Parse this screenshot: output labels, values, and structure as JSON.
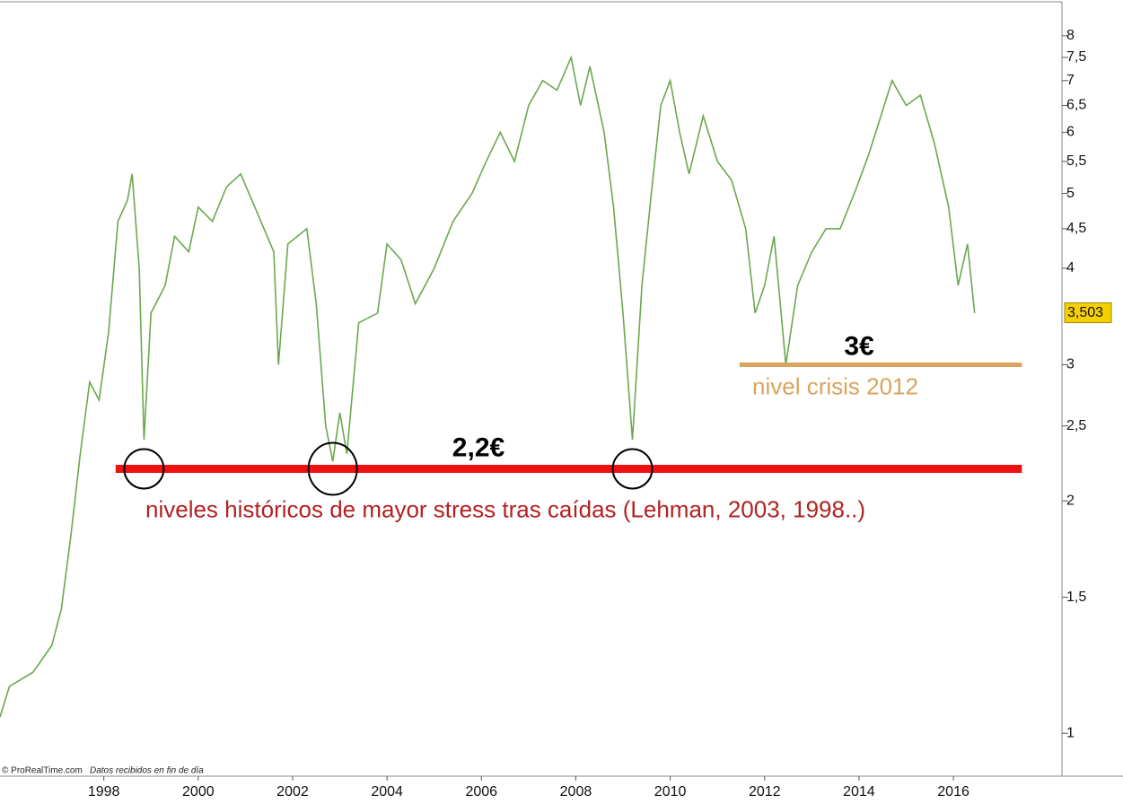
{
  "chart_data": {
    "type": "line",
    "log_scale": true,
    "color": "#6aa84f",
    "x": [
      1995.8,
      1996.0,
      1996.5,
      1996.9,
      1997.1,
      1997.3,
      1997.5,
      1997.7,
      1997.9,
      1998.1,
      1998.3,
      1998.5,
      1998.6,
      1998.75,
      1998.85,
      1999.0,
      1999.3,
      1999.5,
      1999.8,
      2000.0,
      2000.3,
      2000.6,
      2000.9,
      2001.2,
      2001.6,
      2001.7,
      2001.9,
      2002.3,
      2002.5,
      2002.7,
      2002.85,
      2003.0,
      2003.15,
      2003.4,
      2003.8,
      2004.0,
      2004.3,
      2004.6,
      2005.0,
      2005.4,
      2005.8,
      2006.1,
      2006.4,
      2006.7,
      2007.0,
      2007.3,
      2007.6,
      2007.9,
      2008.1,
      2008.3,
      2008.6,
      2008.8,
      2009.0,
      2009.2,
      2009.4,
      2009.6,
      2009.8,
      2010.0,
      2010.2,
      2010.4,
      2010.7,
      2011.0,
      2011.3,
      2011.6,
      2011.8,
      2012.0,
      2012.2,
      2012.45,
      2012.7,
      2013.0,
      2013.3,
      2013.6,
      2013.9,
      2014.2,
      2014.5,
      2014.7,
      2015.0,
      2015.3,
      2015.6,
      2015.9,
      2016.1,
      2016.3,
      2016.45
    ],
    "values": [
      1.05,
      1.15,
      1.2,
      1.3,
      1.45,
      1.8,
      2.3,
      2.85,
      2.7,
      3.3,
      4.6,
      4.9,
      5.3,
      4.0,
      2.4,
      3.5,
      3.8,
      4.4,
      4.2,
      4.8,
      4.6,
      5.1,
      5.3,
      4.8,
      4.2,
      3.0,
      4.3,
      4.5,
      3.6,
      2.5,
      2.25,
      2.6,
      2.3,
      3.4,
      3.5,
      4.3,
      4.1,
      3.6,
      4.0,
      4.6,
      5.0,
      5.5,
      6.0,
      5.5,
      6.5,
      7.0,
      6.8,
      7.5,
      6.5,
      7.3,
      6.0,
      4.8,
      3.5,
      2.4,
      3.8,
      5.0,
      6.5,
      7.0,
      6.0,
      5.3,
      6.3,
      5.5,
      5.2,
      4.5,
      3.5,
      3.8,
      4.4,
      3.0,
      3.8,
      4.2,
      4.5,
      4.5,
      5.0,
      5.6,
      6.4,
      7.0,
      6.5,
      6.7,
      5.8,
      4.8,
      3.8,
      4.3,
      3.5
    ],
    "xlim": [
      1995.8,
      2018.3
    ],
    "xticks": [
      1998,
      2000,
      2002,
      2004,
      2006,
      2008,
      2010,
      2012,
      2014,
      2016
    ],
    "ylim": [
      0.88,
      8.9
    ],
    "yticks": [
      1,
      {
        "value": 1.5,
        "label": "1,5"
      },
      2,
      {
        "value": 2.5,
        "label": "2,5"
      },
      3,
      4,
      {
        "value": 4.5,
        "label": "4,5"
      },
      5,
      {
        "value": 5.5,
        "label": "5,5"
      },
      6,
      {
        "value": 6.5,
        "label": "6,5"
      },
      7,
      {
        "value": 7.5,
        "label": "7,5"
      },
      8
    ],
    "last_value": {
      "value": 3.503,
      "label": "3,503"
    },
    "levels": [
      {
        "value": 2.2,
        "label": "2,2€",
        "caption": "niveles históricos de mayor stress tras caídas (Lehman, 2003, 1998..)",
        "color": "#ee1111",
        "caption_color": "#b22222",
        "x": [
          1998.25,
          2017.45
        ]
      },
      {
        "value": 3,
        "label": "3€",
        "caption": "nivel crisis 2012",
        "color": "#d9a45c",
        "caption_color": "#d9a45c",
        "x": [
          2011.47,
          2017.45
        ]
      }
    ],
    "highlighted_lows": [
      {
        "x": 1998.85,
        "y": 2.2
      },
      {
        "x": 2002.85,
        "y": 2.2
      },
      {
        "x": 2009.2,
        "y": 2.2
      }
    ],
    "footer": {
      "source": "© ProRealTime.com",
      "note": "Datos recibidos en fin de día"
    }
  }
}
